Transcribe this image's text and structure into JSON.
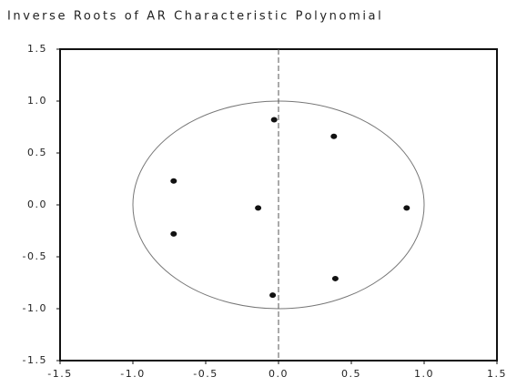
{
  "chart_data": {
    "type": "scatter",
    "title": "Inverse Roots of AR Characteristic Polynomial",
    "x": [
      -0.72,
      -0.72,
      -0.14,
      -0.03,
      0.38,
      0.88,
      0.39,
      -0.04
    ],
    "values": [
      0.23,
      -0.28,
      -0.03,
      0.82,
      0.66,
      -0.03,
      -0.71,
      -0.87
    ],
    "color": "#111111",
    "xlim": [
      -1.5,
      1.5
    ],
    "ylim": [
      -1.5,
      1.5
    ],
    "xticks": [
      -1.5,
      {
        "value": -1,
        "label": "-1.0"
      },
      -0.5,
      {
        "value": 0,
        "label": "0.0"
      },
      0.5,
      {
        "value": 1,
        "label": "1.0"
      },
      1.5
    ],
    "yticks": [
      -1.5,
      {
        "value": -1,
        "label": "-1.0"
      },
      -0.5,
      {
        "value": 0,
        "label": "0.0"
      },
      0.5,
      {
        "value": 1,
        "label": "1.0"
      },
      1.5
    ],
    "unit_circle": true,
    "zero_line": true,
    "grid": false
  }
}
